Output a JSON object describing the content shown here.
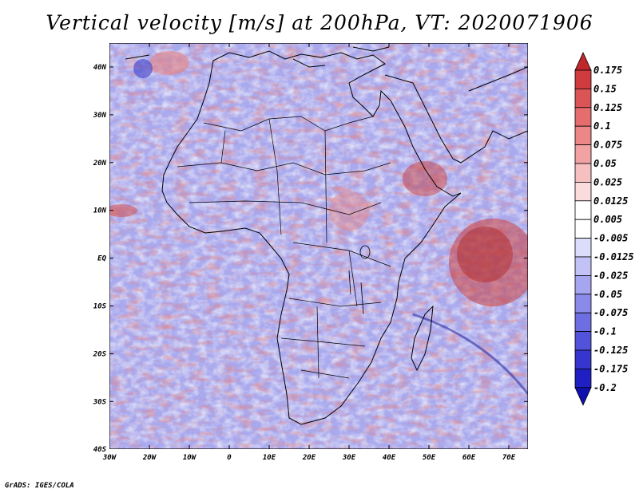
{
  "title": "Vertical velocity [m/s] at 200hPa, VT: 2020071906",
  "footer": "GrADS: IGES/COLA",
  "map": {
    "lon_ticks": [
      "30W",
      "20W",
      "10W",
      "0",
      "10E",
      "20E",
      "30E",
      "40E",
      "50E",
      "60E",
      "70E"
    ],
    "lat_ticks": [
      "40N",
      "30N",
      "20N",
      "10N",
      "EQ",
      "10S",
      "20S",
      "30S",
      "40S"
    ],
    "lon_range": [
      -30,
      75
    ],
    "lat_range": [
      -40,
      45
    ]
  },
  "colorbar": {
    "labels": [
      "0.175",
      "0.15",
      "0.125",
      "0.1",
      "0.075",
      "0.05",
      "0.025",
      "0.0125",
      "0.005",
      "-0.005",
      "-0.0125",
      "-0.025",
      "-0.05",
      "-0.075",
      "-0.1",
      "-0.125",
      "-0.175",
      "-0.2"
    ],
    "colors": [
      "#c0272a",
      "#d03b3d",
      "#dc5556",
      "#e56d6e",
      "#ec8787",
      "#f2a2a2",
      "#f7c0c0",
      "#fbdcdc",
      "#ffffff",
      "#ffffff",
      "#dcdcfb",
      "#c2c2f6",
      "#a5a5f0",
      "#8a8aea",
      "#6e6ee3",
      "#5252da",
      "#3636cf",
      "#1f1fc4",
      "#1010b0"
    ]
  }
}
